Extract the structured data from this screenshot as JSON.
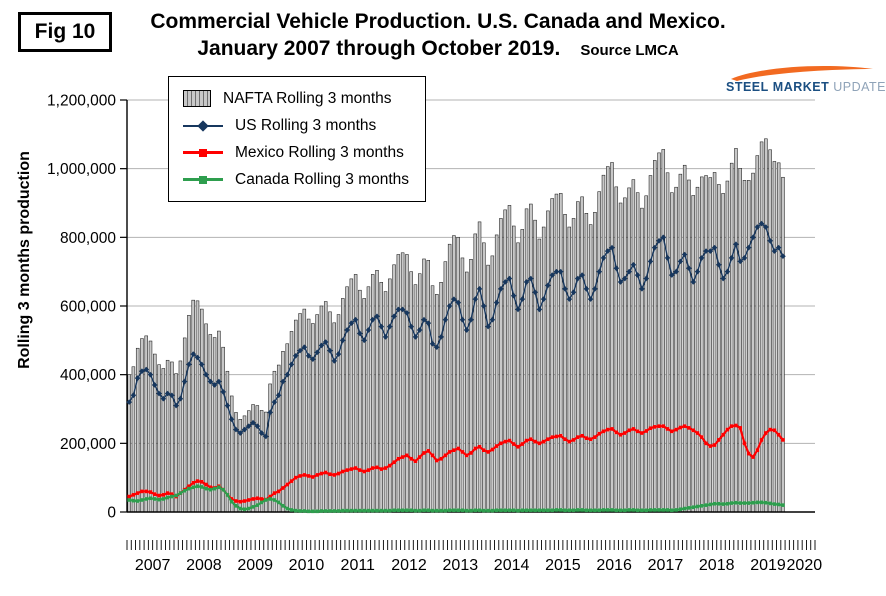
{
  "figure": {
    "fig_label": "Fig 10",
    "title_line1": "Commercial Vehicle Production. U.S. Canada and Mexico.",
    "title_line2": "January 2007 through October 2019.",
    "source": "Source LMCA"
  },
  "logo": {
    "steel": "STEEL",
    "market": "MARKET",
    "update": "UPDATE",
    "swoosh_color": "#F26A21"
  },
  "chart_data": {
    "type": "bar+line",
    "title": "Commercial Vehicle Production. U.S. Canada and Mexico. January 2007 through October 2019.",
    "xlabel": "",
    "ylabel": "Rolling 3 months production",
    "ylim": [
      0,
      1200000
    ],
    "ytick_interval": 200000,
    "ytick_labels": [
      "0",
      "200,000",
      "400,000",
      "600,000",
      "800,000",
      "1,000,000",
      "1,200,000"
    ],
    "x_axis_years": [
      "2007",
      "2008",
      "2009",
      "2010",
      "2011",
      "2012",
      "2013",
      "2014",
      "2015",
      "2016",
      "2017",
      "2018",
      "2019",
      "2020"
    ],
    "x_monthly_start": "2007-01",
    "x_monthly_end": "2019-10",
    "values_scale": 1000,
    "grid": "horizontal",
    "legend_position": "top-left",
    "series": [
      {
        "name": "NAFTA Rolling 3 months",
        "type": "bar",
        "color": "#c8c8c8",
        "values_thousands": [
          400,
          423,
          477,
          505,
          513,
          498,
          460,
          429,
          418,
          442,
          437,
          403,
          440,
          507,
          573,
          617,
          615,
          591,
          548,
          517,
          508,
          527,
          480,
          410,
          338,
          290,
          270,
          280,
          295,
          313,
          310,
          296,
          291,
          373,
          410,
          428,
          468,
          490,
          526,
          559,
          578,
          591,
          562,
          549,
          575,
          600,
          613,
          583,
          551,
          575,
          622,
          656,
          679,
          692,
          646,
          622,
          656,
          692,
          704,
          669,
          642,
          679,
          720,
          750,
          755,
          750,
          700,
          662,
          694,
          737,
          733,
          659,
          634,
          669,
          729,
          780,
          805,
          800,
          740,
          699,
          736,
          810,
          845,
          784,
          719,
          746,
          807,
          855,
          880,
          893,
          833,
          784,
          823,
          883,
          897,
          850,
          795,
          830,
          877,
          913,
          926,
          928,
          867,
          830,
          855,
          904,
          918,
          870,
          837,
          873,
          933,
          981,
          1006,
          1018,
          947,
          900,
          915,
          944,
          968,
          930,
          885,
          921,
          980,
          1024,
          1046,
          1056,
          988,
          930,
          946,
          984,
          1010,
          967,
          922,
          946,
          976,
          980,
          974,
          989,
          954,
          928,
          964,
          1016,
          1059,
          1001,
          966,
          966,
          987,
          1038,
          1078,
          1087,
          1055,
          1021,
          1017,
          975
        ]
      },
      {
        "name": "US Rolling 3 months",
        "type": "line",
        "marker": "diamond",
        "color": "#17375E",
        "values_thousands": [
          320,
          340,
          390,
          410,
          415,
          400,
          370,
          345,
          330,
          345,
          340,
          310,
          330,
          380,
          430,
          460,
          450,
          430,
          400,
          380,
          370,
          380,
          350,
          310,
          270,
          240,
          230,
          240,
          250,
          260,
          250,
          230,
          220,
          290,
          320,
          340,
          380,
          400,
          430,
          455,
          470,
          480,
          455,
          445,
          465,
          485,
          495,
          470,
          440,
          460,
          500,
          530,
          550,
          560,
          520,
          500,
          530,
          560,
          570,
          540,
          510,
          540,
          570,
          590,
          590,
          580,
          540,
          510,
          530,
          560,
          550,
          490,
          480,
          510,
          560,
          600,
          620,
          610,
          560,
          530,
          560,
          620,
          650,
          600,
          540,
          560,
          610,
          650,
          670,
          680,
          630,
          590,
          620,
          670,
          680,
          640,
          590,
          620,
          660,
          690,
          700,
          700,
          650,
          620,
          640,
          680,
          690,
          650,
          620,
          650,
          700,
          740,
          760,
          770,
          710,
          670,
          680,
          700,
          720,
          690,
          650,
          680,
          730,
          770,
          790,
          800,
          740,
          690,
          700,
          730,
          750,
          710,
          670,
          700,
          740,
          760,
          760,
          770,
          720,
          680,
          700,
          740,
          780,
          730,
          740,
          770,
          800,
          830,
          840,
          830,
          790,
          760,
          770,
          745
        ]
      },
      {
        "name": "Mexico Rolling 3 months",
        "type": "line",
        "marker": "square",
        "color": "#FF0000",
        "values_thousands": [
          45,
          50,
          55,
          60,
          60,
          58,
          52,
          48,
          50,
          55,
          52,
          45,
          55,
          65,
          75,
          85,
          90,
          88,
          80,
          72,
          70,
          75,
          65,
          50,
          38,
          32,
          30,
          32,
          35,
          38,
          40,
          38,
          36,
          45,
          55,
          60,
          70,
          80,
          90,
          100,
          105,
          108,
          105,
          102,
          108,
          112,
          115,
          110,
          108,
          112,
          118,
          122,
          125,
          128,
          122,
          118,
          122,
          128,
          130,
          125,
          128,
          135,
          145,
          155,
          160,
          165,
          155,
          148,
          160,
          172,
          178,
          165,
          150,
          155,
          165,
          175,
          180,
          185,
          175,
          165,
          172,
          185,
          190,
          180,
          175,
          182,
          192,
          200,
          205,
          208,
          198,
          190,
          198,
          208,
          212,
          205,
          200,
          205,
          212,
          218,
          220,
          222,
          212,
          205,
          210,
          218,
          222,
          215,
          212,
          218,
          228,
          235,
          240,
          242,
          232,
          225,
          230,
          238,
          242,
          235,
          230,
          236,
          244,
          248,
          250,
          250,
          242,
          235,
          240,
          246,
          250,
          245,
          238,
          230,
          218,
          200,
          192,
          195,
          210,
          225,
          240,
          250,
          252,
          245,
          200,
          170,
          160,
          180,
          210,
          230,
          240,
          238,
          225,
          210
        ]
      },
      {
        "name": "Canada Rolling 3 months",
        "type": "line",
        "marker": "square",
        "color": "#2E9E4E",
        "values_thousands": [
          35,
          33,
          32,
          35,
          38,
          40,
          38,
          36,
          38,
          42,
          45,
          48,
          55,
          62,
          68,
          72,
          75,
          73,
          68,
          65,
          68,
          72,
          65,
          50,
          30,
          18,
          10,
          8,
          10,
          15,
          20,
          28,
          35,
          38,
          35,
          28,
          18,
          10,
          6,
          4,
          3,
          3,
          2,
          2,
          2,
          3,
          3,
          3,
          3,
          3,
          4,
          4,
          4,
          4,
          4,
          4,
          4,
          4,
          4,
          4,
          4,
          4,
          5,
          5,
          5,
          5,
          5,
          4,
          4,
          5,
          5,
          4,
          4,
          4,
          4,
          5,
          5,
          5,
          5,
          4,
          4,
          5,
          5,
          4,
          4,
          4,
          5,
          5,
          5,
          5,
          5,
          4,
          5,
          5,
          5,
          5,
          5,
          5,
          5,
          5,
          6,
          6,
          5,
          5,
          5,
          6,
          6,
          5,
          5,
          5,
          5,
          6,
          6,
          6,
          5,
          5,
          5,
          6,
          6,
          5,
          5,
          5,
          6,
          6,
          6,
          6,
          6,
          5,
          6,
          8,
          10,
          12,
          14,
          16,
          18,
          20,
          22,
          24,
          24,
          23,
          24,
          26,
          27,
          26,
          26,
          26,
          27,
          28,
          28,
          27,
          25,
          23,
          22,
          20
        ]
      }
    ]
  }
}
